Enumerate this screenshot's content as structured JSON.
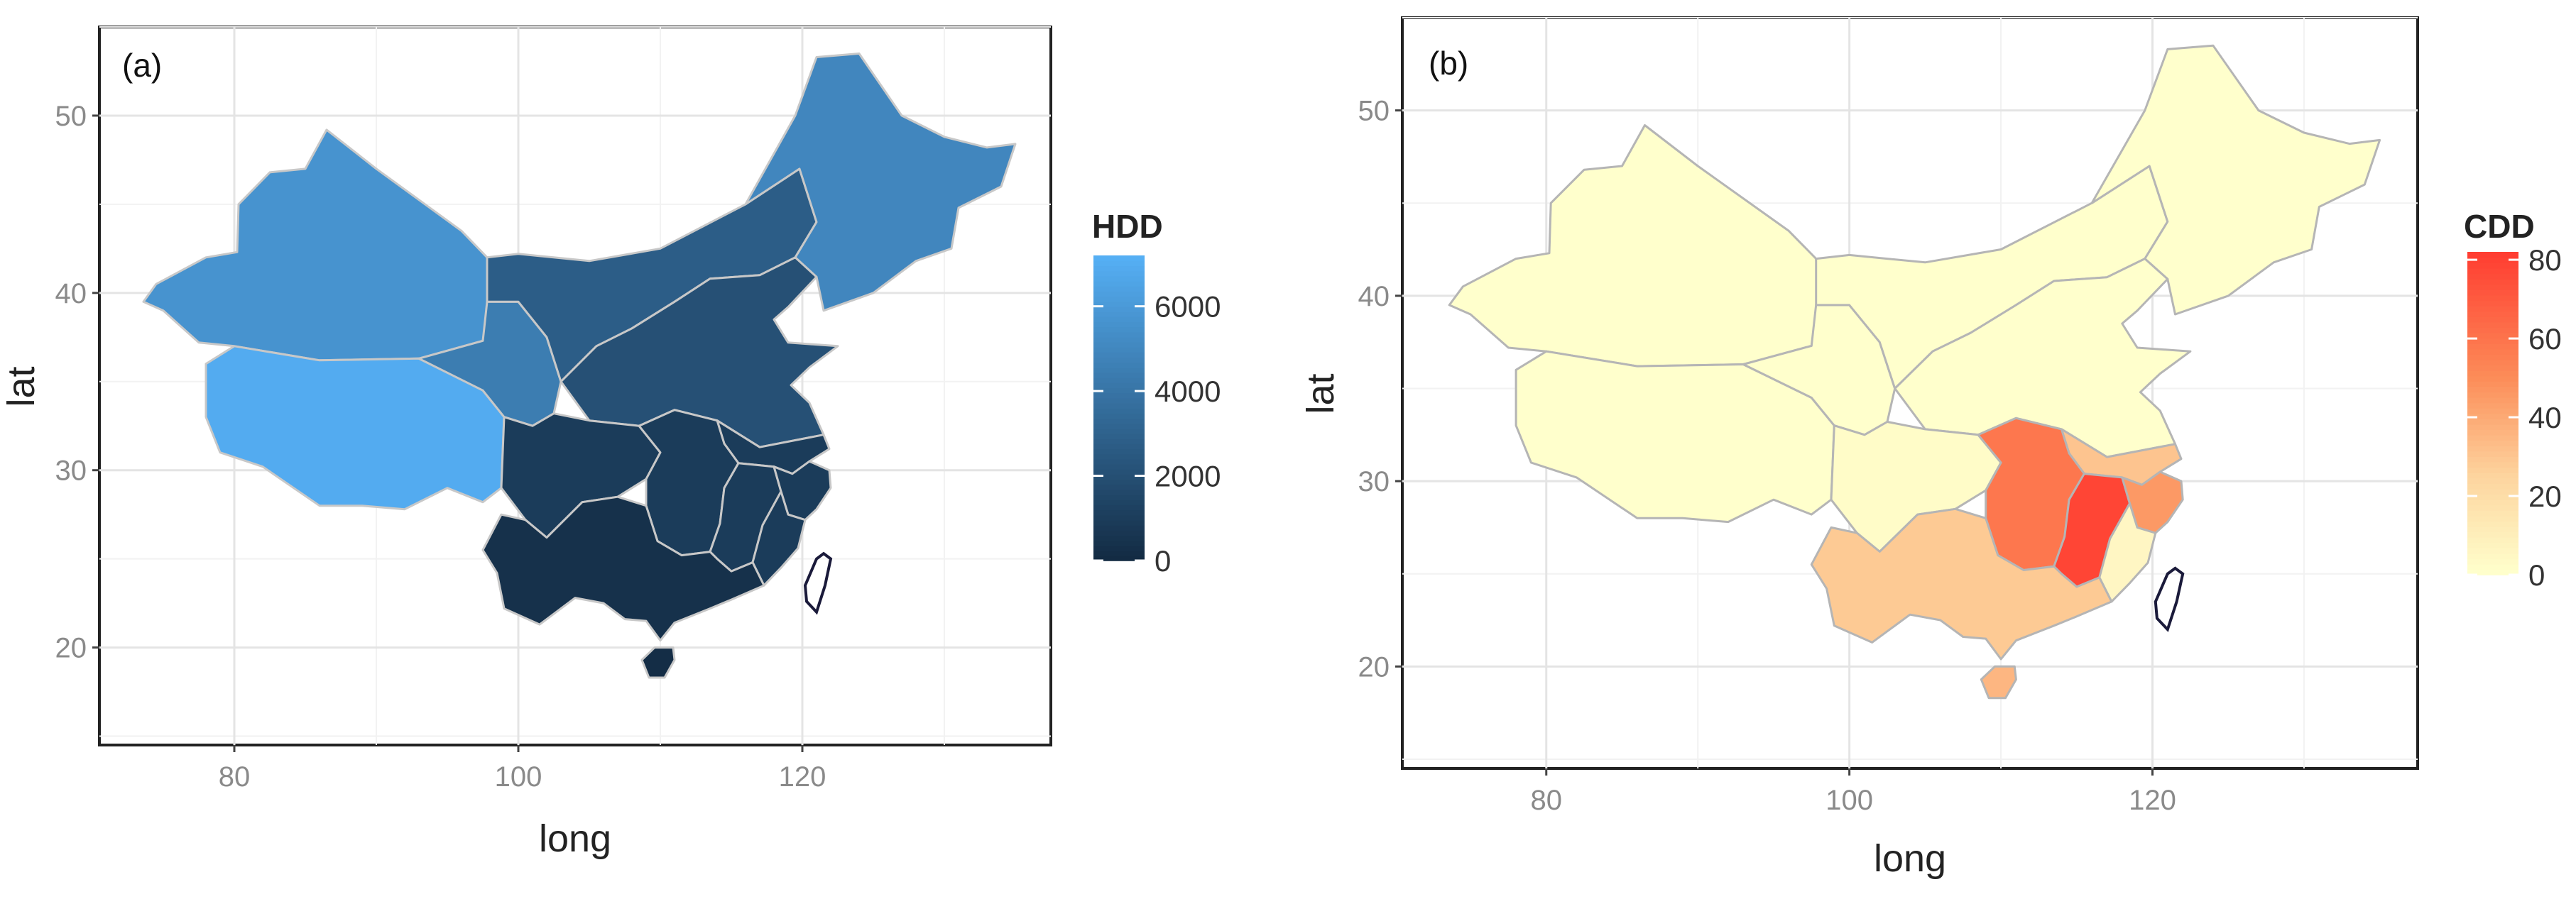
{
  "chart_data": [
    {
      "type": "choropleth",
      "panel_label": "(a)",
      "xlabel": "long",
      "ylabel": "lat",
      "xticks": [
        80,
        100,
        120
      ],
      "yticks": [
        20,
        30,
        40,
        50
      ],
      "xlim": [
        70.5,
        137.5
      ],
      "ylim": [
        14.5,
        55
      ],
      "legend": {
        "title": "HDD",
        "ticks": [
          0,
          2000,
          4000,
          6000
        ],
        "range": [
          0,
          7200
        ],
        "placement": "right",
        "colors": [
          "#132b43",
          "#56b1f7"
        ]
      },
      "regions": [
        {
          "name": "northwest",
          "value": 5600
        },
        {
          "name": "southwest-plateau",
          "value": 6900
        },
        {
          "name": "west-central-plateau",
          "value": 4400
        },
        {
          "name": "northeast",
          "value": 4900
        },
        {
          "name": "north-central",
          "value": 2700
        },
        {
          "name": "north-plain",
          "value": 2000
        },
        {
          "name": "south",
          "value": 900
        },
        {
          "name": "south-coast",
          "value": 300
        },
        {
          "name": "hainan",
          "value": 100
        },
        {
          "name": "taiwan",
          "value": null
        }
      ]
    },
    {
      "type": "choropleth",
      "panel_label": "(b)",
      "xlabel": "long",
      "ylabel": "lat",
      "xticks": [
        80,
        100,
        120
      ],
      "yticks": [
        20,
        30,
        40,
        50
      ],
      "xlim": [
        70.5,
        137.5
      ],
      "ylim": [
        14.5,
        55
      ],
      "legend": {
        "title": "CDD",
        "ticks": [
          0,
          20,
          40,
          60,
          80
        ],
        "range": [
          0,
          82
        ],
        "placement": "right",
        "colors": [
          "#ffffcc",
          "#ff3b30"
        ]
      },
      "regions": [
        {
          "name": "northwest",
          "value": 0
        },
        {
          "name": "southwest-plateau",
          "value": 0
        },
        {
          "name": "west-central-plateau",
          "value": 0
        },
        {
          "name": "northeast",
          "value": 0
        },
        {
          "name": "north-central",
          "value": 0
        },
        {
          "name": "north-plain",
          "value": 0
        },
        {
          "name": "sichuan-basin",
          "value": 2
        },
        {
          "name": "jiangsu-anhui",
          "value": 30
        },
        {
          "name": "hubei-hunan",
          "value": 58
        },
        {
          "name": "jiangxi",
          "value": 78
        },
        {
          "name": "zhejiang",
          "value": 45
        },
        {
          "name": "fujian",
          "value": 5
        },
        {
          "name": "guangxi-guangdong",
          "value": 28
        },
        {
          "name": "hainan",
          "value": 35
        },
        {
          "name": "taiwan",
          "value": null
        }
      ]
    }
  ]
}
